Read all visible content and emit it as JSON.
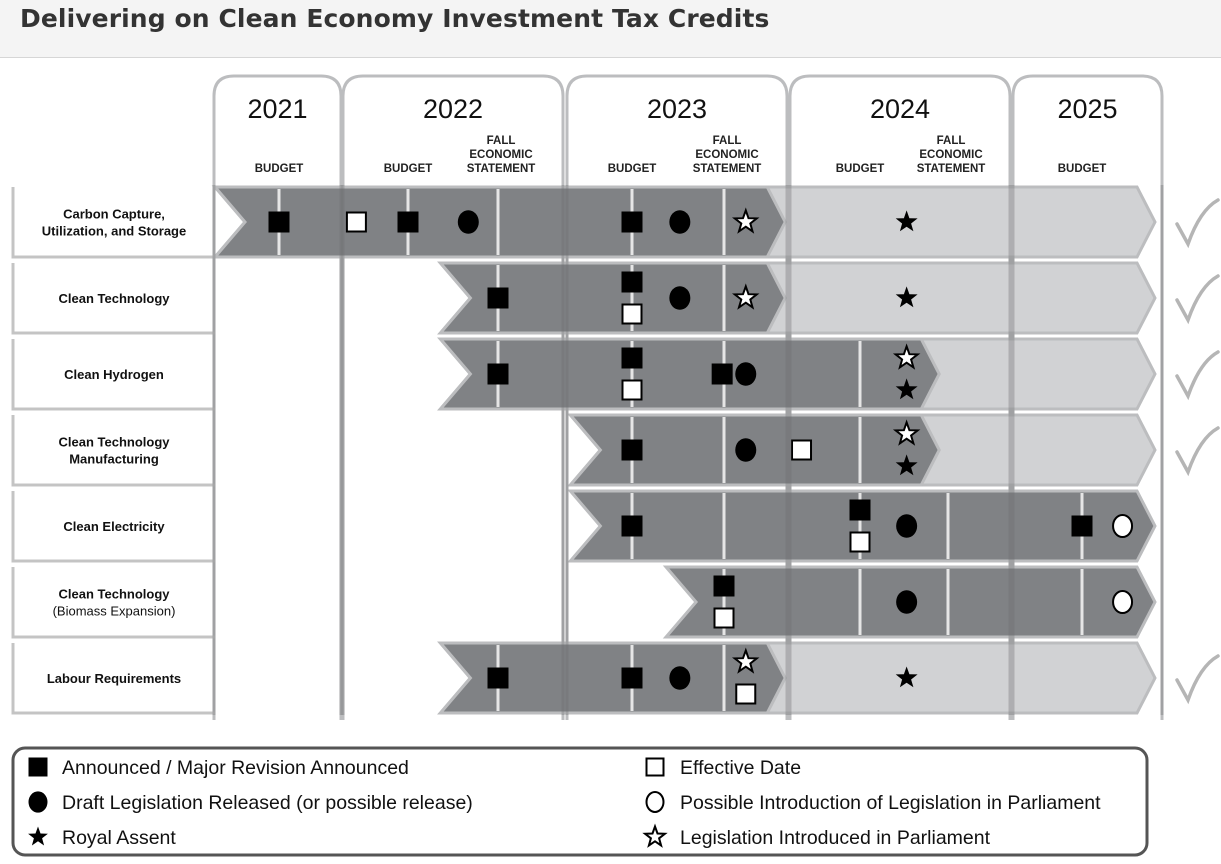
{
  "title": "Delivering on Clean Economy Investment Tax Credits",
  "chart_data": {
    "type": "timeline",
    "colors": {
      "active": "#808285",
      "completed": "#d1d2d4",
      "outline": "#bcbdbf",
      "marker": "#000000",
      "check": "#b5b5b5"
    },
    "years": [
      {
        "label": "2021",
        "events": [
          "BUDGET"
        ]
      },
      {
        "label": "2022",
        "events": [
          "BUDGET",
          "FALL ECONOMIC STATEMENT"
        ]
      },
      {
        "label": "2023",
        "events": [
          "BUDGET",
          "FALL ECONOMIC STATEMENT"
        ]
      },
      {
        "label": "2024",
        "events": [
          "BUDGET",
          "FALL ECONOMIC STATEMENT"
        ]
      },
      {
        "label": "2025",
        "events": [
          "BUDGET"
        ]
      }
    ],
    "timeline_note": "t values: 0=2021 Budget, 1=2022 Budget, 2=2022 FES, 3=2023 Budget, 4=2023 FES, 5=2024 Budget, 6=2024 FES, 7=2025 Budget",
    "rows": [
      {
        "label": [
          "Carbon Capture,",
          "Utilization, and Storage"
        ],
        "start": -0.5,
        "active_end": 4.45,
        "completed_end": 7.9,
        "complete": true,
        "markers": [
          {
            "t": 0,
            "type": "announced"
          },
          {
            "t": 0.6,
            "type": "effective"
          },
          {
            "t": 1,
            "type": "announced"
          },
          {
            "t": 1.67,
            "type": "draft"
          },
          {
            "t": 3,
            "type": "announced"
          },
          {
            "t": 3.52,
            "type": "draft"
          },
          {
            "t": 4.16,
            "type": "introduced"
          },
          {
            "t": 5.53,
            "type": "assent"
          }
        ]
      },
      {
        "label": [
          "Clean Technology"
        ],
        "start": 1.36,
        "active_end": 4.45,
        "completed_end": 7.9,
        "complete": true,
        "markers": [
          {
            "t": 2,
            "type": "announced"
          },
          {
            "t": 3,
            "type": "announced",
            "stack": "top"
          },
          {
            "t": 3,
            "type": "effective",
            "stack": "bottom"
          },
          {
            "t": 3.52,
            "type": "draft"
          },
          {
            "t": 4.16,
            "type": "introduced"
          },
          {
            "t": 5.53,
            "type": "assent"
          }
        ]
      },
      {
        "label": [
          "Clean Hydrogen"
        ],
        "start": 1.36,
        "active_end": 5.9,
        "completed_end": 7.9,
        "complete": true,
        "markers": [
          {
            "t": 2,
            "type": "announced"
          },
          {
            "t": 3,
            "type": "announced",
            "stack": "top"
          },
          {
            "t": 3,
            "type": "effective",
            "stack": "bottom"
          },
          {
            "t": 3.98,
            "type": "announced"
          },
          {
            "t": 4.16,
            "type": "draft"
          },
          {
            "t": 5.53,
            "type": "introduced",
            "stack": "top"
          },
          {
            "t": 5.53,
            "type": "assent",
            "stack": "bottom"
          }
        ]
      },
      {
        "label": [
          "Clean Technology",
          "Manufacturing"
        ],
        "start": 2.54,
        "active_end": 5.9,
        "completed_end": 7.9,
        "complete": true,
        "markers": [
          {
            "t": 3,
            "type": "announced"
          },
          {
            "t": 4.16,
            "type": "draft"
          },
          {
            "t": 4.57,
            "type": "effective"
          },
          {
            "t": 5.53,
            "type": "introduced",
            "stack": "top"
          },
          {
            "t": 5.53,
            "type": "assent",
            "stack": "bottom"
          }
        ]
      },
      {
        "label": [
          "Clean Electricity"
        ],
        "start": 2.54,
        "active_end": 7.9,
        "completed_end": null,
        "complete": false,
        "markers": [
          {
            "t": 3,
            "type": "announced"
          },
          {
            "t": 5,
            "type": "announced",
            "stack": "top"
          },
          {
            "t": 5,
            "type": "effective",
            "stack": "bottom"
          },
          {
            "t": 5.53,
            "type": "draft"
          },
          {
            "t": 7,
            "type": "announced"
          },
          {
            "t": 7.5,
            "type": "possible_intro"
          }
        ]
      },
      {
        "label": [
          "Clean Technology",
          "(Biomass Expansion)"
        ],
        "start": 3.37,
        "active_end": 7.9,
        "completed_end": null,
        "complete": false,
        "markers": [
          {
            "t": 4,
            "type": "announced",
            "stack": "top"
          },
          {
            "t": 4,
            "type": "effective",
            "stack": "bottom"
          },
          {
            "t": 5.53,
            "type": "draft"
          },
          {
            "t": 7.5,
            "type": "possible_intro"
          }
        ]
      },
      {
        "label": [
          "Labour Requirements"
        ],
        "start": 1.36,
        "active_end": 4.45,
        "completed_end": 7.9,
        "complete": true,
        "markers": [
          {
            "t": 2,
            "type": "announced"
          },
          {
            "t": 3,
            "type": "announced"
          },
          {
            "t": 3.52,
            "type": "draft"
          },
          {
            "t": 4.16,
            "type": "introduced",
            "stack": "top"
          },
          {
            "t": 4.16,
            "type": "effective",
            "stack": "bottom"
          },
          {
            "t": 5.53,
            "type": "assent"
          }
        ]
      }
    ],
    "legend": [
      {
        "type": "announced",
        "label": "Announced / Major Revision Announced"
      },
      {
        "type": "draft",
        "label": "Draft Legislation Released (or possible release)"
      },
      {
        "type": "assent",
        "label": "Royal Assent"
      },
      {
        "type": "effective",
        "label": "Effective Date"
      },
      {
        "type": "possible_intro",
        "label": "Possible Introduction of Legislation in Parliament"
      },
      {
        "type": "introduced",
        "label": "Legislation Introduced in Parliament"
      }
    ]
  }
}
